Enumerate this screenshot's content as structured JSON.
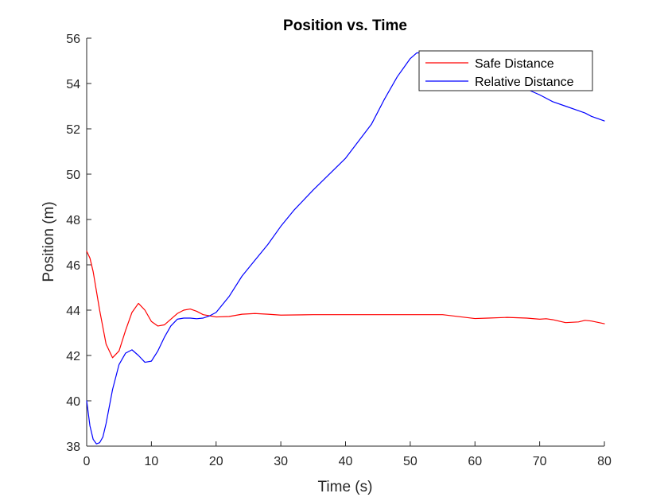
{
  "chart_data": {
    "type": "line",
    "title": "Position vs. Time",
    "xlabel": "Time (s)",
    "ylabel": "Position (m)",
    "xlim": [
      0,
      80
    ],
    "ylim": [
      38,
      56
    ],
    "xticks": [
      "0",
      "10",
      "20",
      "30",
      "40",
      "50",
      "60",
      "70",
      "80"
    ],
    "yticks": [
      "38",
      "40",
      "42",
      "44",
      "46",
      "48",
      "50",
      "52",
      "54",
      "56"
    ],
    "grid": false,
    "legend_position": "top-right",
    "series": [
      {
        "name": "Safe Distance",
        "color": "#ff0000",
        "x": [
          0,
          0.5,
          1,
          2,
          3,
          4,
          5,
          6,
          7,
          8,
          9,
          10,
          11,
          12,
          13,
          14,
          15,
          16,
          17,
          18,
          19,
          20,
          22,
          24,
          26,
          28,
          30,
          35,
          40,
          45,
          50,
          55,
          60,
          62,
          65,
          68,
          70,
          71,
          72,
          74,
          76,
          77,
          78,
          80
        ],
        "values": [
          46.6,
          46.3,
          45.7,
          44.0,
          42.5,
          41.9,
          42.2,
          43.1,
          43.9,
          44.3,
          44.0,
          43.5,
          43.3,
          43.35,
          43.6,
          43.85,
          44.0,
          44.05,
          43.95,
          43.8,
          43.75,
          43.7,
          43.72,
          43.82,
          43.85,
          43.82,
          43.78,
          43.8,
          43.8,
          43.8,
          43.8,
          43.8,
          43.63,
          43.65,
          43.68,
          43.65,
          43.6,
          43.62,
          43.58,
          43.45,
          43.48,
          43.55,
          43.52,
          43.4
        ]
      },
      {
        "name": "Relative Distance",
        "color": "#0000ff",
        "x": [
          0,
          0.5,
          1,
          1.5,
          2,
          2.5,
          3,
          4,
          5,
          6,
          7,
          8,
          9,
          10,
          11,
          12,
          13,
          14,
          15,
          16,
          17,
          18,
          19,
          20,
          22,
          24,
          26,
          28,
          30,
          32,
          35,
          40,
          44,
          46,
          48,
          50,
          51,
          52,
          53,
          54,
          56,
          58,
          60,
          62,
          65,
          68,
          70,
          72,
          74,
          76,
          77,
          78,
          80
        ],
        "values": [
          40.0,
          38.9,
          38.3,
          38.1,
          38.15,
          38.4,
          39.0,
          40.5,
          41.6,
          42.1,
          42.25,
          42.0,
          41.7,
          41.75,
          42.2,
          42.8,
          43.3,
          43.6,
          43.65,
          43.65,
          43.62,
          43.65,
          43.75,
          43.9,
          44.6,
          45.5,
          46.2,
          46.9,
          47.7,
          48.4,
          49.3,
          50.7,
          52.2,
          53.3,
          54.3,
          55.1,
          55.35,
          55.35,
          55.3,
          55.2,
          55.0,
          54.8,
          54.5,
          54.3,
          54.0,
          53.75,
          53.5,
          53.2,
          53.0,
          52.8,
          52.7,
          52.55,
          52.35
        ]
      }
    ]
  }
}
